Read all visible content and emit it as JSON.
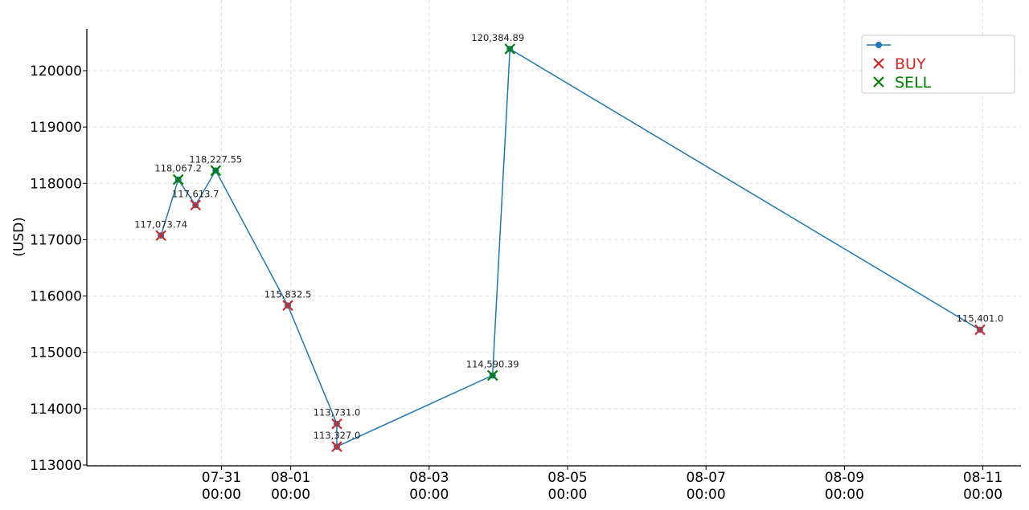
{
  "chart_data": {
    "type": "line",
    "title": "",
    "xlabel": "",
    "ylabel": "(USD)",
    "ylim": [
      113000,
      120700
    ],
    "yticks": [
      113000,
      114000,
      115000,
      116000,
      117000,
      118000,
      119000,
      120000
    ],
    "xlim_hours": [
      -57,
      245
    ],
    "xticks": [
      {
        "date": "07-31",
        "time": "00:00"
      },
      {
        "date": "08-01",
        "time": "00:00"
      },
      {
        "date": "08-03",
        "time": "00:00"
      },
      {
        "date": "08-05",
        "time": "00:00"
      },
      {
        "date": "08-07",
        "time": "00:00"
      },
      {
        "date": "08-09",
        "time": "00:00"
      },
      {
        "date": "08-11",
        "time": "00:00"
      }
    ],
    "grid": true,
    "line_color": "#1f77b4",
    "buy_color": "#d62728",
    "sell_color": "#008000",
    "legend": {
      "position": "top-right",
      "entries": [
        {
          "label": "",
          "kind": "line"
        },
        {
          "label": "BUY",
          "kind": "buy"
        },
        {
          "label": "SELL",
          "kind": "sell"
        }
      ]
    },
    "points": [
      {
        "x": "07-30 03:00",
        "y": 117073.74,
        "label": "117,073.74",
        "type": "BUY"
      },
      {
        "x": "07-30 09:00",
        "y": 118067.2,
        "label": "118,067.2",
        "type": "SELL"
      },
      {
        "x": "07-30 15:00",
        "y": 117613.7,
        "label": "117,613.7",
        "type": "BUY"
      },
      {
        "x": "07-30 22:00",
        "y": 118227.55,
        "label": "118,227.55",
        "type": "SELL"
      },
      {
        "x": "07-31 23:00",
        "y": 115832.5,
        "label": "115,832.5",
        "type": "BUY"
      },
      {
        "x": "08-01 16:00",
        "y": 113731.0,
        "label": "113,731.0",
        "type": "BUY"
      },
      {
        "x": "08-01 16:00",
        "y": 113327.0,
        "label": "113,327.0",
        "type": "BUY"
      },
      {
        "x": "08-03 22:00",
        "y": 114590.39,
        "label": "114,590.39",
        "type": "SELL"
      },
      {
        "x": "08-04 04:00",
        "y": 120384.89,
        "label": "120,384.89",
        "type": "SELL"
      },
      {
        "x": "08-10 23:00",
        "y": 115401.0,
        "label": "115,401.0",
        "type": "BUY"
      }
    ]
  }
}
